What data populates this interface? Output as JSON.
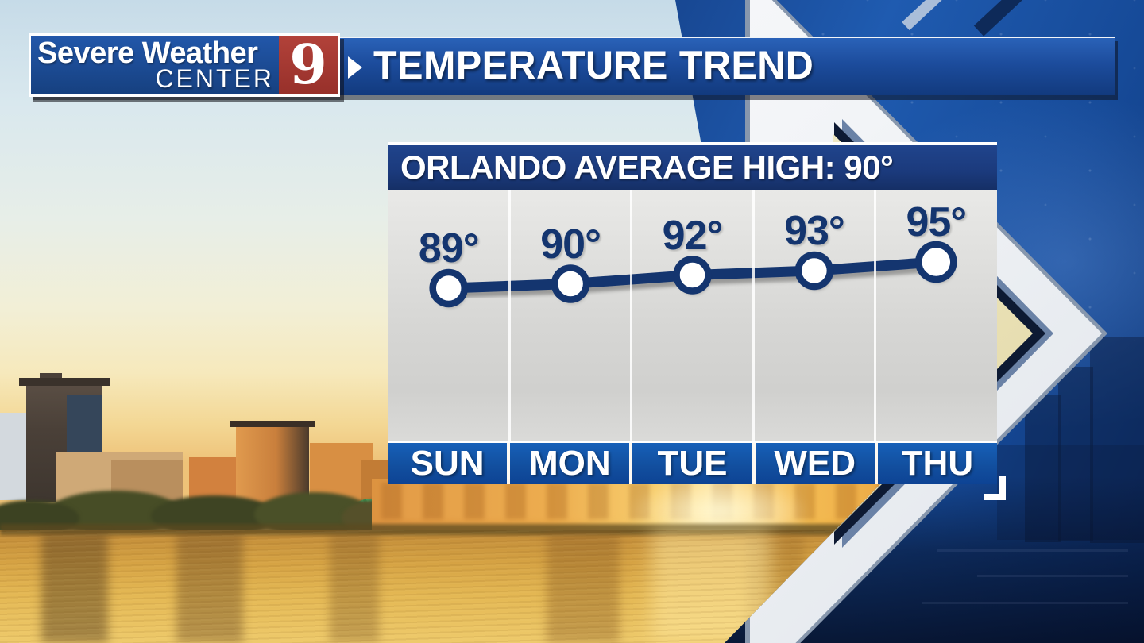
{
  "banner": {
    "brand_line1": "Severe Weather",
    "brand_line2": "CENTER",
    "brand_number": "9",
    "title": "TEMPERATURE TREND"
  },
  "panel": {
    "header": "ORLANDO AVERAGE HIGH: 90°"
  },
  "chart_data": {
    "type": "line",
    "title": "ORLANDO AVERAGE HIGH: 90°",
    "average_high": 90,
    "unit": "°F",
    "categories": [
      "SUN",
      "MON",
      "TUE",
      "WED",
      "THU"
    ],
    "values": [
      89,
      90,
      92,
      93,
      95
    ],
    "value_labels": [
      "89°",
      "90°",
      "92°",
      "93°",
      "95°"
    ],
    "ylim": [
      85,
      100
    ],
    "grid": "vertical-column-separators",
    "legend_position": "none",
    "marker": "open-circle",
    "line_color": "#14356f"
  },
  "colors": {
    "header_blue": "#1b3a7c",
    "footer_blue": "#1155ad",
    "line_navy": "#14356f",
    "brand_red": "#a5352d",
    "chevron_cream": "#efe8c2"
  }
}
